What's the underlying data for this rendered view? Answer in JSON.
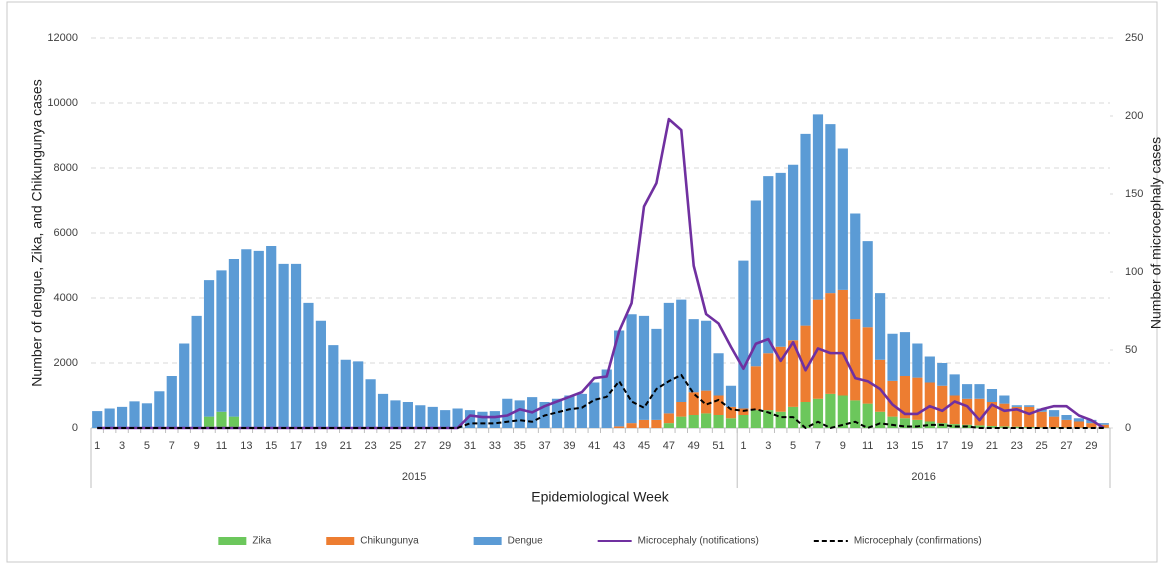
{
  "chart_data": {
    "type": "bar",
    "stacked": true,
    "y_label": "Number of dengue, Zika, and Chikungunya cases",
    "y2_label": "Number of microcephaly cases",
    "x_label": "Epidemiological Week",
    "x_groups": [
      "2015",
      "2016"
    ],
    "categories": [
      "1",
      null,
      "3",
      null,
      "5",
      null,
      "7",
      null,
      "9",
      null,
      "11",
      null,
      "13",
      null,
      "15",
      null,
      "17",
      null,
      "19",
      null,
      "21",
      null,
      "23",
      null,
      "25",
      null,
      "27",
      null,
      "29",
      null,
      "31",
      null,
      "33",
      null,
      "35",
      null,
      "37",
      null,
      "39",
      null,
      "41",
      null,
      "43",
      null,
      "45",
      null,
      "47",
      null,
      "49",
      null,
      "51",
      null,
      "1",
      null,
      "3",
      null,
      "5",
      null,
      "7",
      null,
      "9",
      null,
      "11",
      null,
      "13",
      null,
      "15",
      null,
      "17",
      null,
      "19",
      null,
      "21",
      null,
      "23",
      null,
      "25",
      null,
      "27",
      null,
      "29",
      null
    ],
    "ylim": [
      0,
      12000
    ],
    "yticks": [
      0,
      2000,
      4000,
      6000,
      8000,
      10000,
      12000
    ],
    "y2lim": [
      0,
      250
    ],
    "y2ticks": [
      0,
      50,
      100,
      150,
      200,
      250
    ],
    "grid": true,
    "legend": "bottom",
    "series": [
      {
        "name": "Zika",
        "type": "bar",
        "color": "#6cc75c",
        "values": [
          0,
          0,
          0,
          0,
          0,
          0,
          0,
          0,
          0,
          350,
          500,
          350,
          0,
          0,
          0,
          0,
          0,
          0,
          0,
          0,
          0,
          0,
          0,
          0,
          0,
          0,
          0,
          0,
          0,
          0,
          0,
          0,
          0,
          0,
          0,
          0,
          0,
          0,
          0,
          0,
          0,
          0,
          0,
          0,
          0,
          0,
          150,
          350,
          400,
          450,
          400,
          300,
          400,
          550,
          550,
          500,
          650,
          800,
          900,
          1050,
          1000,
          850,
          750,
          500,
          350,
          300,
          250,
          200,
          150,
          120,
          100,
          80,
          60,
          50,
          40,
          30,
          20,
          20,
          10,
          10,
          10,
          10
        ]
      },
      {
        "name": "Chikungunya",
        "type": "bar",
        "color": "#ed7d31",
        "values": [
          0,
          0,
          0,
          0,
          0,
          0,
          0,
          0,
          0,
          0,
          0,
          0,
          0,
          0,
          0,
          0,
          0,
          0,
          0,
          0,
          0,
          0,
          0,
          0,
          0,
          0,
          0,
          0,
          0,
          0,
          0,
          0,
          0,
          0,
          0,
          0,
          0,
          0,
          0,
          0,
          0,
          0,
          50,
          150,
          250,
          250,
          300,
          450,
          700,
          700,
          600,
          350,
          200,
          1350,
          1750,
          2000,
          2050,
          2350,
          3050,
          3100,
          3250,
          2500,
          2350,
          1600,
          1100,
          1300,
          1300,
          1200,
          1150,
          880,
          800,
          820,
          740,
          700,
          610,
          620,
          480,
          330,
          240,
          190,
          140,
          90
        ]
      },
      {
        "name": "Dengue",
        "type": "bar",
        "color": "#5b9bd5",
        "values": [
          520,
          600,
          650,
          820,
          760,
          1130,
          1600,
          2600,
          3450,
          4200,
          4350,
          4850,
          5500,
          5450,
          5600,
          5050,
          5050,
          3850,
          3300,
          2550,
          2100,
          2050,
          1500,
          1050,
          850,
          800,
          700,
          650,
          550,
          600,
          550,
          500,
          520,
          900,
          850,
          950,
          800,
          900,
          1000,
          1050,
          1400,
          1800,
          2950,
          3350,
          3200,
          2800,
          3400,
          3150,
          2250,
          2150,
          1300,
          650,
          4550,
          5100,
          5450,
          5350,
          5400,
          5900,
          5700,
          5200,
          4350,
          3250,
          2650,
          2050,
          1450,
          1350,
          1050,
          800,
          700,
          650,
          450,
          450,
          400,
          250,
          50,
          50,
          100,
          200,
          150,
          100,
          100,
          50
        ]
      },
      {
        "name": "Microcephaly (notifications)",
        "type": "line",
        "axis": "y2",
        "color": "#7030a0",
        "dash": false,
        "values": [
          0,
          0,
          0,
          0,
          0,
          0,
          0,
          0,
          0,
          0,
          0,
          0,
          0,
          0,
          0,
          0,
          0,
          0,
          0,
          0,
          0,
          0,
          0,
          0,
          0,
          0,
          0,
          0,
          0,
          0,
          8,
          7,
          7,
          8,
          12,
          10,
          14,
          17,
          20,
          23,
          32,
          33,
          62,
          80,
          142,
          157,
          198,
          191,
          104,
          73,
          67,
          52,
          38,
          54,
          57,
          43,
          55,
          37,
          51,
          48,
          48,
          32,
          30,
          25,
          15,
          9,
          9,
          14,
          11,
          17,
          14,
          5,
          15,
          11,
          12,
          9,
          12,
          14,
          14,
          8,
          5,
          0
        ]
      },
      {
        "name": "Microcephaly (confirmations)",
        "type": "line",
        "axis": "y2",
        "color": "#000000",
        "dash": true,
        "values": [
          0,
          0,
          0,
          0,
          0,
          0,
          0,
          0,
          0,
          0,
          0,
          0,
          0,
          0,
          0,
          0,
          0,
          0,
          0,
          0,
          0,
          0,
          0,
          0,
          0,
          0,
          0,
          0,
          0,
          0,
          3,
          3,
          3,
          4,
          5,
          4,
          8,
          10,
          12,
          13,
          18,
          20,
          30,
          17,
          13,
          25,
          30,
          34,
          22,
          15,
          18,
          12,
          11,
          12,
          10,
          7,
          7,
          0,
          4,
          0,
          2,
          4,
          0,
          3,
          2,
          1,
          1,
          2,
          2,
          1,
          1,
          0,
          0,
          0,
          0,
          0,
          0,
          0,
          0,
          0,
          0,
          0
        ]
      }
    ]
  }
}
